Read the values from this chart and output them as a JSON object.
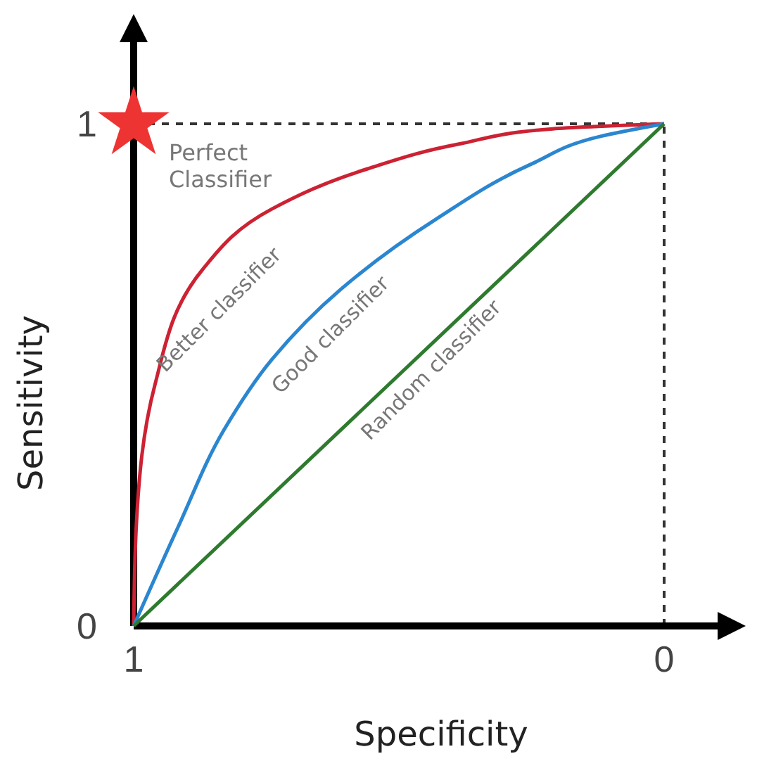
{
  "chart_data": {
    "type": "line",
    "xlabel": "Specificity",
    "ylabel": "Sensitivity",
    "xlim": [
      1,
      0
    ],
    "xticks": [
      1,
      0
    ],
    "ylim": [
      0,
      1
    ],
    "yticks": [
      0,
      1
    ],
    "grid": false,
    "series": [
      {
        "name": "Better classifier",
        "color": "#cc2233",
        "x": [
          1,
          0.995,
          0.96,
          0.87,
          0.74,
          0.56,
          0.385,
          0.21,
          0
        ],
        "values": [
          0,
          0.2,
          0.48,
          0.71,
          0.83,
          0.91,
          0.96,
          0.99,
          1
        ]
      },
      {
        "name": "Good classifier",
        "color": "#2b86d0",
        "x": [
          1,
          0.915,
          0.83,
          0.74,
          0.61,
          0.43,
          0.25,
          0.12,
          0
        ],
        "values": [
          0,
          0.2,
          0.39,
          0.53,
          0.67,
          0.81,
          0.92,
          0.975,
          1
        ]
      },
      {
        "name": "Random classifier",
        "color": "#2e7a2e",
        "x": [
          1,
          0
        ],
        "values": [
          0,
          1
        ]
      },
      {
        "name": "Perfect Classifier",
        "type": "scatter",
        "marker": "star",
        "color": "#ee3333",
        "x": [
          1
        ],
        "values": [
          1
        ]
      }
    ],
    "ref_lines": [
      {
        "axis": "y",
        "value": 1,
        "label": null,
        "line_style": "dashed",
        "color": "#333333"
      },
      {
        "axis": "x",
        "value": 0,
        "label": null,
        "line_style": "dashed",
        "color": "#333333"
      }
    ]
  }
}
